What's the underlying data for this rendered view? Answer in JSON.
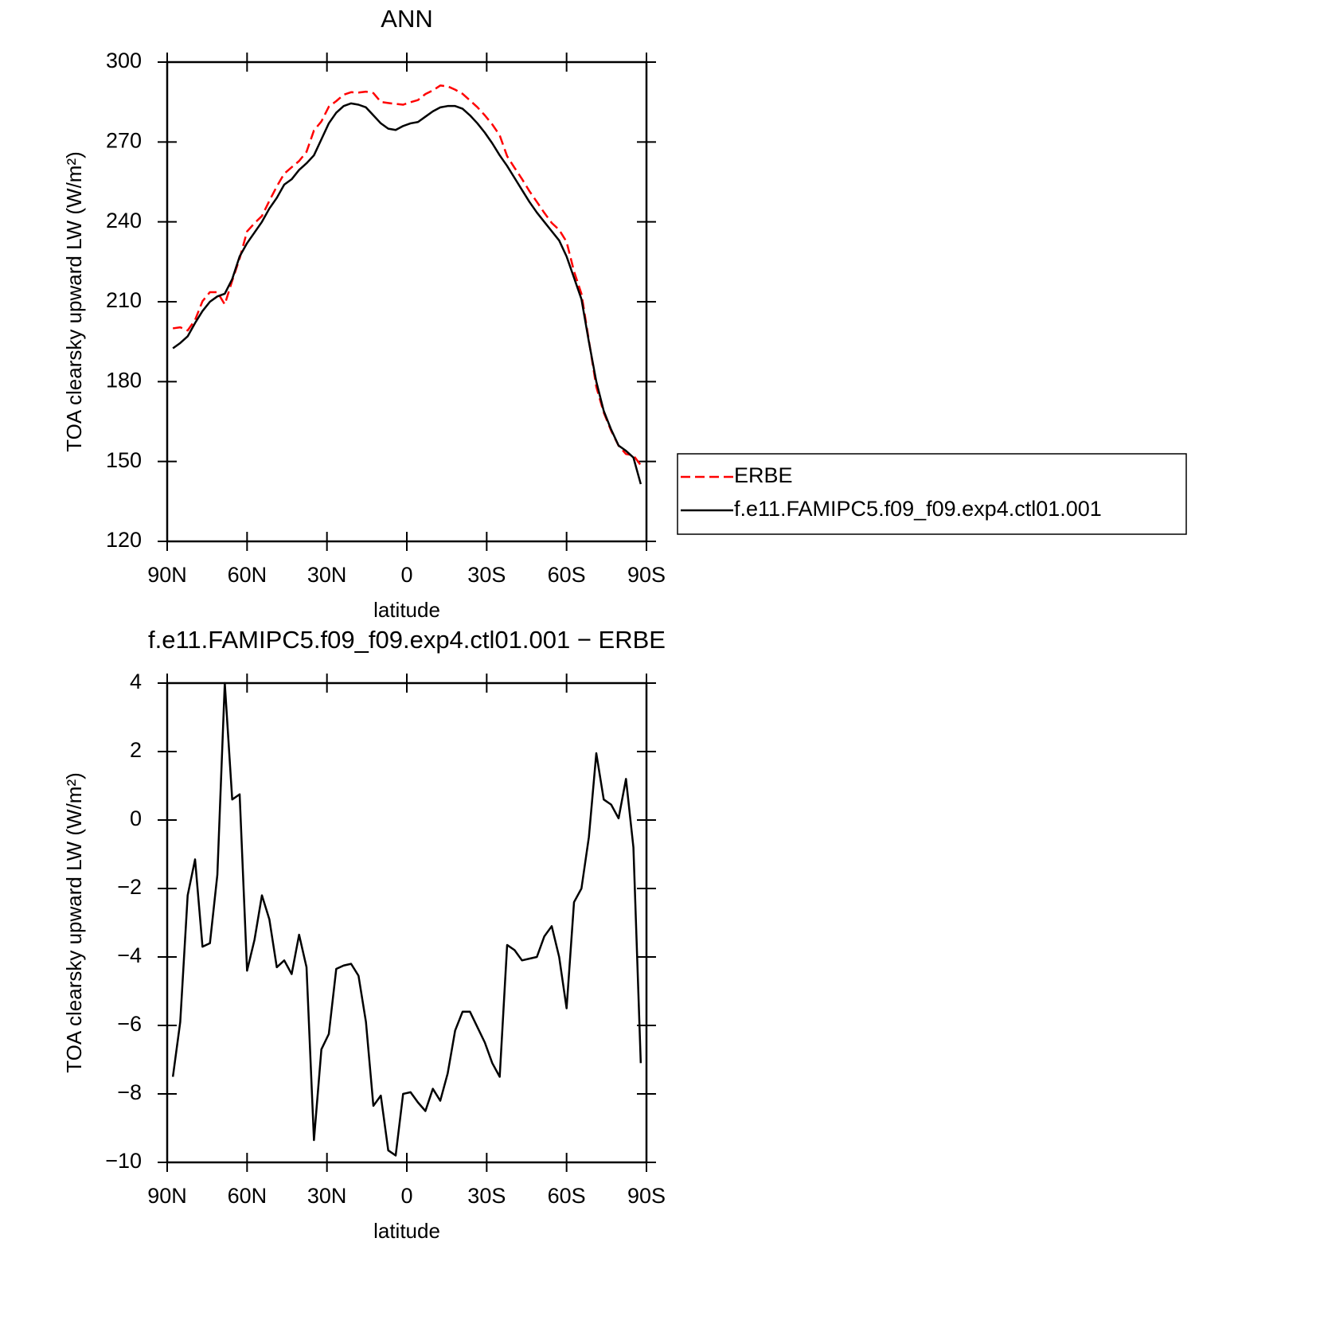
{
  "chart_data": [
    {
      "type": "line",
      "title": "ANN",
      "xlabel": "latitude",
      "ylabel": "TOA clearsky upward LW (W/m²)",
      "x": [
        87.86,
        85.1,
        82.31,
        79.53,
        76.74,
        73.95,
        71.16,
        68.37,
        65.58,
        62.79,
        60,
        57.21,
        54.42,
        51.63,
        48.84,
        46.04,
        43.25,
        40.46,
        37.67,
        34.88,
        32.09,
        29.3,
        26.51,
        23.72,
        20.93,
        18.14,
        15.35,
        12.56,
        9.77,
        6.98,
        4.19,
        1.4,
        -1.4,
        -4.19,
        -6.98,
        -9.77,
        -12.56,
        -15.35,
        -18.14,
        -20.93,
        -23.72,
        -26.51,
        -29.3,
        -32.09,
        -34.88,
        -37.67,
        -40.46,
        -43.25,
        -46.04,
        -48.84,
        -51.63,
        -54.42,
        -57.21,
        -60,
        -62.79,
        -65.58,
        -68.37,
        -71.16,
        -73.95,
        -76.74,
        -79.53,
        -82.31,
        -85.1,
        -87.86
      ],
      "series": [
        {
          "name": "ERBE",
          "color": "#ff0000",
          "dashed": true,
          "values": [
            200,
            200.4,
            199.2,
            203.15,
            210.2,
            213.6,
            213.6,
            209,
            217.9,
            226.25,
            236.4,
            239.5,
            242.2,
            247.9,
            253.3,
            258.1,
            260.5,
            262.85,
            266.3,
            274.35,
            277.7,
            283.25,
            285.35,
            287.75,
            288.7,
            288.55,
            288.9,
            288.35,
            285.05,
            284.65,
            284.3,
            284,
            284.95,
            285.75,
            288,
            289.35,
            291.2,
            290.9,
            289.65,
            288.1,
            285.6,
            283.05,
            280,
            276.6,
            272.5,
            264.65,
            260.3,
            256.1,
            251.55,
            247.5,
            243.4,
            239.6,
            237,
            232.5,
            221.4,
            213,
            195.5,
            178.05,
            168.4,
            161.55,
            155.95,
            152.8,
            152.3,
            148.6
          ]
        },
        {
          "name": "f.e11.FAMIPC5.f09_f09.exp4.ctl01.001",
          "color": "#000000",
          "dashed": false,
          "values": [
            192.5,
            194.5,
            197,
            202,
            206.5,
            210,
            212,
            213,
            218.5,
            227,
            232,
            236,
            240,
            245,
            249,
            254,
            256,
            259.5,
            262,
            265,
            271,
            277,
            281,
            283.5,
            284.5,
            284,
            283,
            280,
            277,
            275,
            274.5,
            276,
            277,
            277.5,
            279.5,
            281.5,
            283,
            283.5,
            283.5,
            282.5,
            280,
            277,
            273.5,
            269.5,
            265,
            261,
            256.5,
            252,
            247.5,
            243.5,
            240,
            236.5,
            233,
            227,
            219,
            211,
            195,
            180,
            169,
            162,
            156,
            154,
            151.5,
            141.5
          ]
        }
      ],
      "xlim": [
        90,
        -90
      ],
      "xticks": [
        {
          "value": 90,
          "label": "90N"
        },
        {
          "value": 60,
          "label": "60N"
        },
        {
          "value": 30,
          "label": "30N"
        },
        0,
        {
          "value": -30,
          "label": "30S"
        },
        {
          "value": -60,
          "label": "60S"
        },
        {
          "value": -90,
          "label": "90S"
        }
      ],
      "ylim": [
        120,
        300
      ],
      "yticks": [
        120,
        150,
        180,
        210,
        240,
        270,
        300
      ]
    },
    {
      "type": "line",
      "title": "f.e11.FAMIPC5.f09_f09.exp4.ctl01.001 − ERBE",
      "xlabel": "latitude",
      "ylabel": "TOA clearsky upward LW (W/m²)",
      "x": [
        87.86,
        85.1,
        82.31,
        79.53,
        76.74,
        73.95,
        71.16,
        68.37,
        65.58,
        62.79,
        60,
        57.21,
        54.42,
        51.63,
        48.84,
        46.04,
        43.25,
        40.46,
        37.67,
        34.88,
        32.09,
        29.3,
        26.51,
        23.72,
        20.93,
        18.14,
        15.35,
        12.56,
        9.77,
        6.98,
        4.19,
        1.4,
        -1.4,
        -4.19,
        -6.98,
        -9.77,
        -12.56,
        -15.35,
        -18.14,
        -20.93,
        -23.72,
        -26.51,
        -29.3,
        -32.09,
        -34.88,
        -37.67,
        -40.46,
        -43.25,
        -46.04,
        -48.84,
        -51.63,
        -54.42,
        -57.21,
        -60,
        -62.79,
        -65.58,
        -68.37,
        -71.16,
        -73.95,
        -76.74,
        -79.53,
        -82.31,
        -85.1,
        -87.86
      ],
      "series": [
        {
          "color": "#000000",
          "dashed": false,
          "values": [
            -7.5,
            -5.9,
            -2.2,
            -1.15,
            -3.7,
            -3.6,
            -1.6,
            4.0,
            0.6,
            0.75,
            -4.4,
            -3.5,
            -2.2,
            -2.9,
            -4.3,
            -4.1,
            -4.5,
            -3.35,
            -4.3,
            -9.35,
            -6.7,
            -6.25,
            -4.35,
            -4.25,
            -4.2,
            -4.55,
            -5.9,
            -8.35,
            -8.05,
            -9.65,
            -9.8,
            -8.0,
            -7.95,
            -8.25,
            -8.5,
            -7.85,
            -8.2,
            -7.4,
            -6.15,
            -5.6,
            -5.6,
            -6.05,
            -6.5,
            -7.1,
            -7.5,
            -3.65,
            -3.8,
            -4.1,
            -4.05,
            -4.0,
            -3.4,
            -3.1,
            -4.0,
            -5.5,
            -2.4,
            -2.0,
            -0.5,
            1.95,
            0.6,
            0.45,
            0.05,
            1.2,
            -0.8,
            -7.1
          ]
        }
      ],
      "xlim": [
        90,
        -90
      ],
      "xticks": [
        {
          "value": 90,
          "label": "90N"
        },
        {
          "value": 60,
          "label": "60N"
        },
        {
          "value": 30,
          "label": "30N"
        },
        0,
        {
          "value": -30,
          "label": "30S"
        },
        {
          "value": -60,
          "label": "60S"
        },
        {
          "value": -90,
          "label": "90S"
        }
      ],
      "ylim": [
        -10,
        4
      ],
      "yticks": [
        {
          "value": -10,
          "label": "−10"
        },
        {
          "value": -8,
          "label": "−8"
        },
        {
          "value": -6,
          "label": "−6"
        },
        {
          "value": -4,
          "label": "−4"
        },
        {
          "value": -2,
          "label": "−2"
        },
        0,
        2,
        4
      ]
    }
  ]
}
